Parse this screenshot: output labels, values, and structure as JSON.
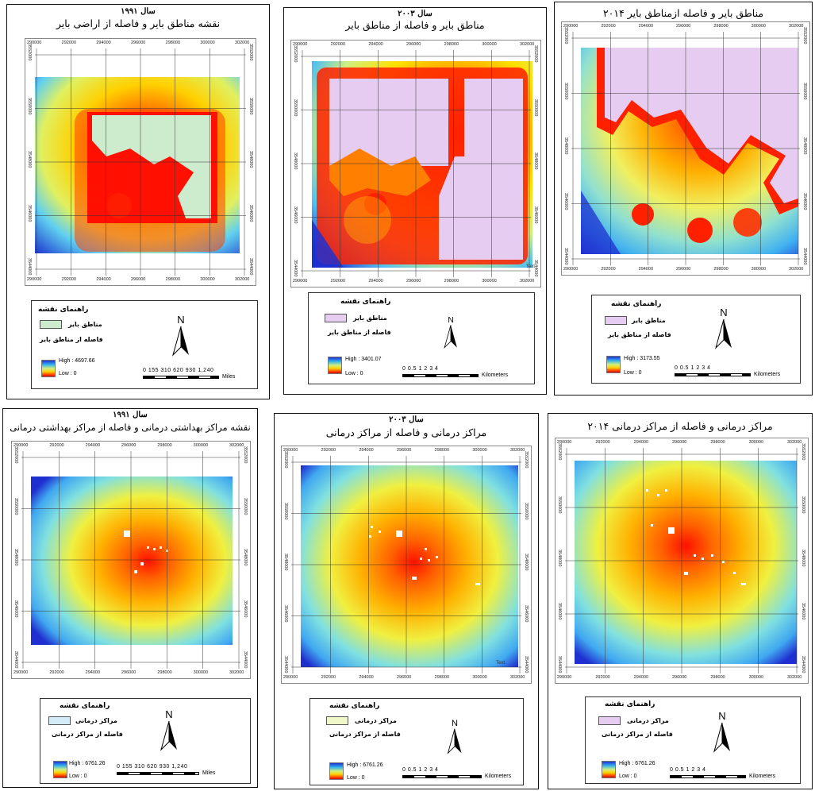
{
  "panels": [
    {
      "year": "سال ۱۹۹۱",
      "title": "نقشه مناطق بایر و فاصله از اراضی بایر",
      "legend_title": "راهنمای نقشه",
      "item1": "مناطق بایر",
      "item2": "فاصله از مناطق بایر",
      "high": "High : 4697.66",
      "low": "Low : 0",
      "scale_nums": "0  155 310    620     930    1,240",
      "scale_unit": "Miles",
      "swatch": "#cdeccd"
    },
    {
      "year": "سال ۲۰۰۳",
      "title": "مناطق بایر و فاصله از مناطق بایر",
      "legend_title": "راهنمای نقشه",
      "item1": "مناطق بایر",
      "item2": "فاصله از مناطق بایر",
      "high": "High : 3401.07",
      "low": "Low : 0",
      "scale_nums": "0 0.5  1      2       3       4",
      "scale_unit": "Kilometers",
      "swatch": "#e6ccf0"
    },
    {
      "year": "",
      "title": "مناطق بایر و فاصله ازمناطق بایر ۲۰۱۴",
      "legend_title": "راهنمای نقشه",
      "item1": "مناطق بایر",
      "item2": "فاصله از مناطق بایر",
      "high": "High : 3173.55",
      "low": "Low : 0",
      "scale_nums": "0  0.5  1      2       3       4",
      "scale_unit": "Kilometers",
      "swatch": "#e6ccf0"
    },
    {
      "year": "سال ۱۹۹۱",
      "title": "نقشه مراکز بهداشتی درمانی و فاصله از مراکز بهداشتی درمانی",
      "legend_title": "راهنمای نقشه",
      "item1": "مراکز درمانی",
      "item2": "فاصله از مراکز درمانی",
      "high": "High : 6761.26",
      "low": "Low : 0",
      "scale_nums": "0  155 310    620     930    1,240",
      "scale_unit": "Miles",
      "swatch": "#d4ecf8"
    },
    {
      "year": "سال ۲۰۰۳",
      "title": "مراکز درمانی و فاصله از مراکز درمانی",
      "legend_title": "راهنمای نقشه",
      "item1": "مراکز درمانی",
      "item2": "فاصله از مراکز درمانی",
      "high": "High : 6761.26",
      "low": "Low : 0",
      "scale_nums": "0  0.5  1      2       3       4",
      "scale_unit": "Kilometers",
      "swatch": "#f0f8c8"
    },
    {
      "year": "",
      "title": "مراکز درمانی و فاصله از مراکز درمانی ۲۰۱۴",
      "legend_title": "راهنمای نقشه",
      "item1": "مراکز درمانی",
      "item2": "فاصله از مراکز درمانی",
      "high": "High : 6761.26",
      "low": "Low : 0",
      "scale_nums": "0  0.5  1      2       3       4",
      "scale_unit": "Kilometers",
      "swatch": "#e6ccf0"
    }
  ],
  "north_label": "N",
  "x_ticks": [
    "290000",
    "292000",
    "294000",
    "296000",
    "298000",
    "300000",
    "302000"
  ],
  "y_ticks": [
    "3552000",
    "3550000",
    "3548000",
    "3546000",
    "3544000"
  ],
  "text_mark": "Text"
}
